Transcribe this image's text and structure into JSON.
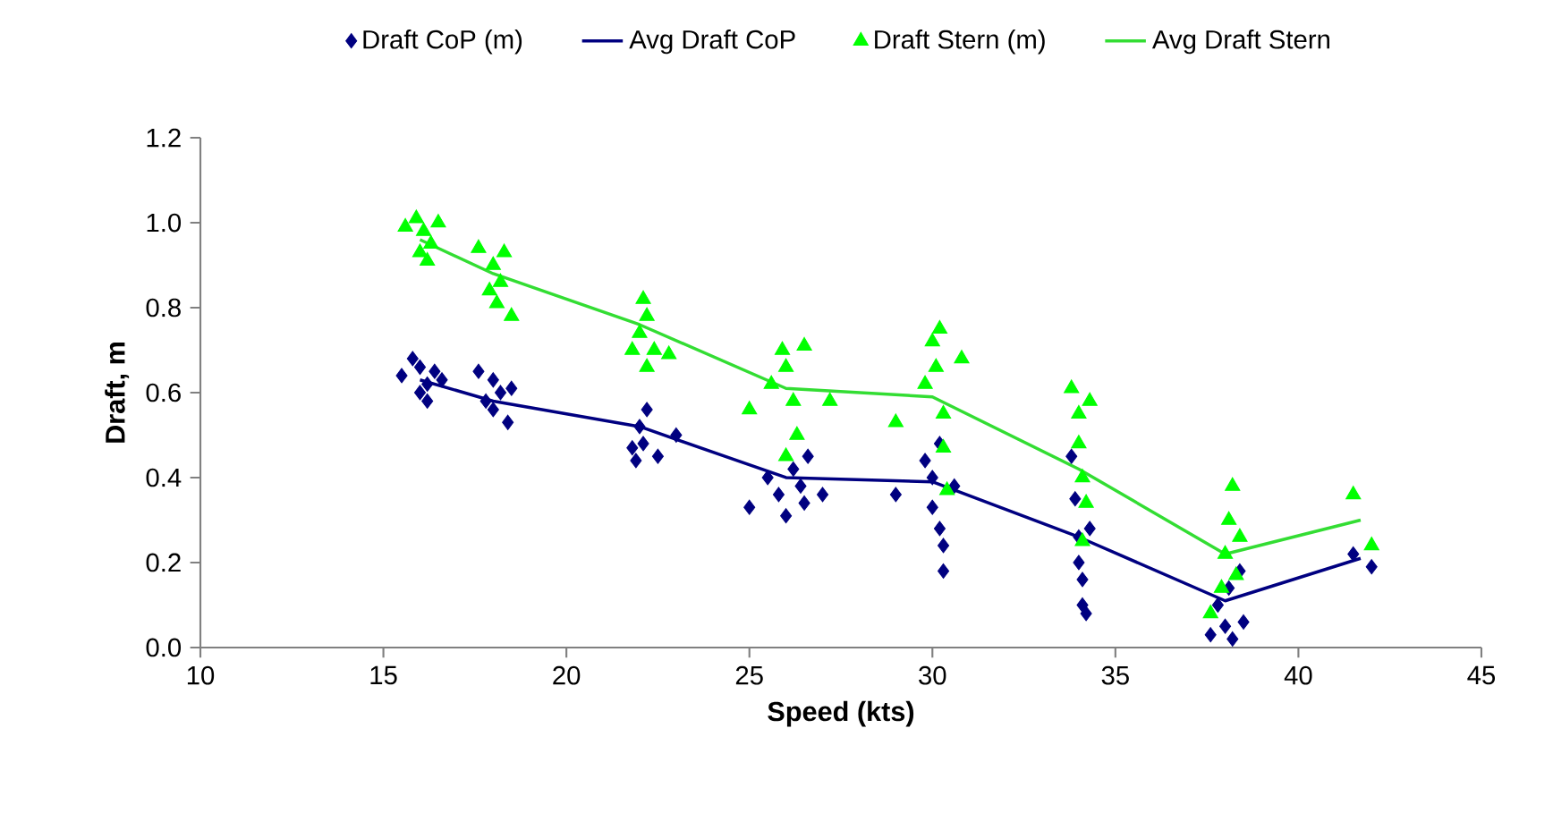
{
  "chart_data": {
    "type": "scatter",
    "xlabel": "Speed (kts)",
    "ylabel": "Draft, m",
    "xlim": [
      10,
      45
    ],
    "ylim": [
      0,
      1.2
    ],
    "xticks": [
      10,
      15,
      20,
      25,
      30,
      35,
      40,
      45
    ],
    "yticks": [
      {
        "value": 0,
        "label": "0.0"
      },
      {
        "value": 0.2,
        "label": "0.2"
      },
      {
        "value": 0.4,
        "label": "0.4"
      },
      {
        "value": 0.6,
        "label": "0.6"
      },
      {
        "value": 0.8,
        "label": "0.8"
      },
      {
        "value": 1,
        "label": "1.0"
      },
      {
        "value": 1.2,
        "label": "1.2"
      }
    ],
    "legend": "top",
    "grid": false,
    "series": [
      {
        "name": "Draft CoP (m)",
        "marker": "diamond",
        "color": "#000080",
        "x": [
          15.5,
          15.8,
          16,
          16.2,
          16,
          16.4,
          16.6,
          16.2,
          17.6,
          18,
          18.2,
          18,
          18.4,
          17.8,
          18.5,
          21.8,
          22,
          22.2,
          22.1,
          22.5,
          23,
          21.9,
          25,
          25.5,
          25.8,
          26,
          26.2,
          26.4,
          26.6,
          27,
          26.5,
          29,
          29.8,
          30,
          30,
          30.2,
          30.3,
          30.3,
          30.6,
          30.2,
          33.8,
          33.9,
          34,
          34,
          34.1,
          34.1,
          34.2,
          34.3,
          37.6,
          38,
          38.2,
          38.1,
          38.4,
          38.5,
          37.8,
          41.5,
          42
        ],
        "values": [
          0.64,
          0.68,
          0.66,
          0.62,
          0.6,
          0.65,
          0.63,
          0.58,
          0.65,
          0.63,
          0.6,
          0.56,
          0.53,
          0.58,
          0.61,
          0.47,
          0.52,
          0.56,
          0.48,
          0.45,
          0.5,
          0.44,
          0.33,
          0.4,
          0.36,
          0.31,
          0.42,
          0.38,
          0.45,
          0.36,
          0.34,
          0.36,
          0.44,
          0.4,
          0.33,
          0.28,
          0.24,
          0.18,
          0.38,
          0.48,
          0.45,
          0.35,
          0.26,
          0.2,
          0.16,
          0.1,
          0.08,
          0.28,
          0.03,
          0.05,
          0.02,
          0.14,
          0.18,
          0.06,
          0.1,
          0.22,
          0.19
        ]
      },
      {
        "name": "Avg Draft CoP",
        "type": "line",
        "marker": "none",
        "line_style": "solid",
        "color": "#000080",
        "x": [
          16,
          18,
          22,
          26,
          30,
          34,
          38,
          41.7
        ],
        "values": [
          0.63,
          0.58,
          0.52,
          0.4,
          0.39,
          0.26,
          0.11,
          0.21
        ]
      },
      {
        "name": "Draft Stern (m)",
        "marker": "triangle",
        "color": "#00ff00",
        "x": [
          15.6,
          15.9,
          16.1,
          16.3,
          16.2,
          16.5,
          16,
          17.6,
          18,
          18.2,
          18.1,
          18.5,
          18.3,
          17.9,
          21.8,
          22,
          22.1,
          22.2,
          22.4,
          22.8,
          22.2,
          25,
          25.6,
          25.9,
          26,
          26.2,
          26.3,
          26.5,
          27.2,
          26,
          29,
          29.8,
          30,
          30.2,
          30.1,
          30.3,
          30.3,
          30.8,
          30.4,
          33.8,
          34,
          34,
          34.1,
          34.2,
          34.3,
          34.1,
          37.6,
          37.9,
          38,
          38.1,
          38.2,
          38.4,
          38.3,
          41.5,
          42
        ],
        "values": [
          0.99,
          1.01,
          0.98,
          0.95,
          0.91,
          1.0,
          0.93,
          0.94,
          0.9,
          0.86,
          0.81,
          0.78,
          0.93,
          0.84,
          0.7,
          0.74,
          0.82,
          0.78,
          0.7,
          0.69,
          0.66,
          0.56,
          0.62,
          0.7,
          0.66,
          0.58,
          0.5,
          0.71,
          0.58,
          0.45,
          0.53,
          0.62,
          0.72,
          0.75,
          0.66,
          0.55,
          0.47,
          0.68,
          0.37,
          0.61,
          0.55,
          0.48,
          0.4,
          0.34,
          0.58,
          0.25,
          0.08,
          0.14,
          0.22,
          0.3,
          0.38,
          0.26,
          0.17,
          0.36,
          0.24
        ]
      },
      {
        "name": "Avg Draft Stern",
        "type": "line",
        "marker": "none",
        "line_style": "solid",
        "color": "#33dd33",
        "x": [
          16,
          18,
          22,
          26,
          30,
          34,
          38,
          41.7
        ],
        "values": [
          0.96,
          0.88,
          0.76,
          0.61,
          0.59,
          0.42,
          0.22,
          0.3
        ]
      }
    ]
  }
}
